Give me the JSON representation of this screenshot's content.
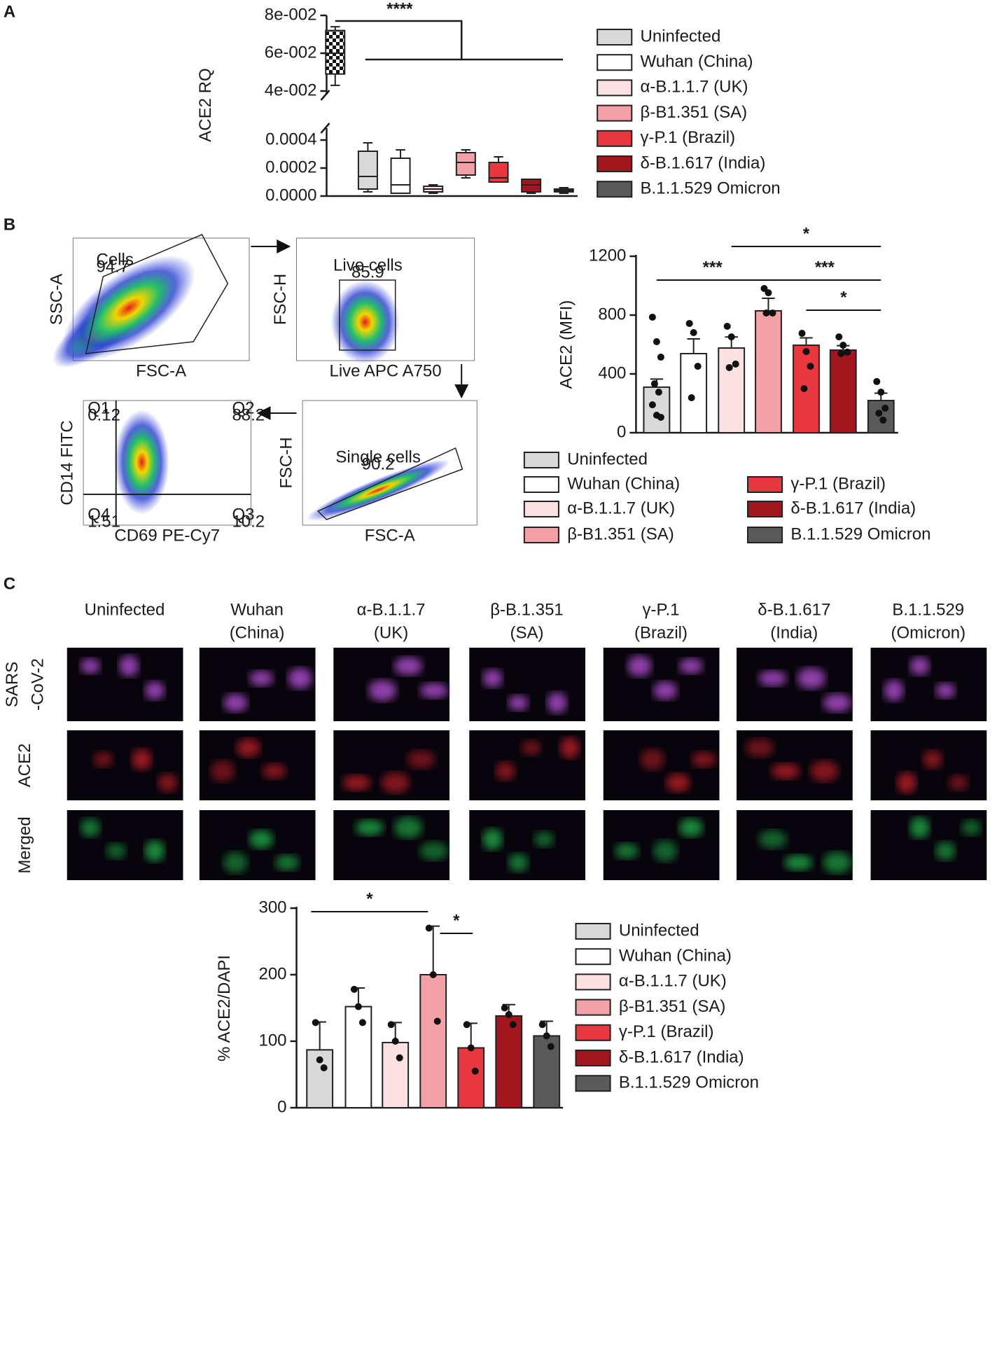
{
  "panel_labels": [
    "A",
    "B",
    "C"
  ],
  "chart_data": [
    {
      "type": "box",
      "ylabel": "ACE2 RQ",
      "upper_ylim": [
        0.04,
        0.08
      ],
      "upper_yticks": [
        {
          "value": 0.04,
          "label": "4e-002"
        },
        {
          "value": 0.06,
          "label": "6e-002"
        },
        {
          "value": 0.08,
          "label": "8e-002"
        }
      ],
      "ylim": [
        0,
        0.00045
      ],
      "yticks": [
        {
          "value": 0,
          "label": "0.0000"
        },
        {
          "value": 0.0002,
          "label": "0.0002"
        },
        {
          "value": 0.0004,
          "label": "0.0004"
        }
      ],
      "reference_box": {
        "pattern": "checker",
        "values": [
          0.043,
          0.049,
          0.06,
          0.072,
          0.074
        ]
      },
      "series": [
        {
          "name": "Uninfected",
          "color": "#d9d9d9",
          "values": [
            3e-05,
            5e-05,
            0.00014,
            0.00032,
            0.00038
          ]
        },
        {
          "name": "Wuhan (China)",
          "color": "#ffffff",
          "values": [
            2e-05,
            2e-05,
            8e-05,
            0.00027,
            0.00033
          ]
        },
        {
          "name": "α-B.1.1.7 (UK)",
          "color": "#fbe1e3",
          "values": [
            2e-05,
            3e-05,
            5e-05,
            7e-05,
            8e-05
          ]
        },
        {
          "name": "β-B1.351 (SA)",
          "color": "#f3a0a6",
          "values": [
            0.00013,
            0.00015,
            0.00024,
            0.00031,
            0.00033
          ]
        },
        {
          "name": "γ-P.1 (Brazil)",
          "color": "#e8373f",
          "values": [
            0.0001,
            0.0001,
            0.00013,
            0.00024,
            0.00028
          ]
        },
        {
          "name": "δ-B.1.617 (India)",
          "color": "#a3161e",
          "values": [
            2e-05,
            3e-05,
            8e-05,
            0.00012,
            0.00012
          ]
        },
        {
          "name": "B.1.1.529 Omicron",
          "color": "#5a5a5a",
          "values": [
            2e-05,
            3e-05,
            4e-05,
            5e-05,
            6e-05
          ]
        }
      ],
      "significance": [
        {
          "label": "****"
        }
      ]
    },
    {
      "type": "bar",
      "ylabel": "ACE2 (MFI)",
      "ylim": [
        0,
        1200
      ],
      "yticks": [
        0,
        400,
        800,
        1200
      ],
      "series": [
        {
          "name": "Uninfected",
          "color": "#d9d9d9",
          "value": 310,
          "error": 55,
          "points": [
            786,
            619,
            514,
            333,
            276,
            190,
            119,
            105
          ]
        },
        {
          "name": "Wuhan (China)",
          "color": "#ffffff",
          "value": 538,
          "error": 100,
          "points": [
            743,
            681,
            452,
            238
          ]
        },
        {
          "name": "α-B.1.1.7 (UK)",
          "color": "#fbe1e3",
          "value": 576,
          "error": 75,
          "points": [
            724,
            652,
            467,
            443
          ]
        },
        {
          "name": "β-B1.351 (SA)",
          "color": "#f3a0a6",
          "value": 829,
          "error": 85,
          "points": [
            981,
            952,
            814,
            814
          ]
        },
        {
          "name": "γ-P.1 (Brazil)",
          "color": "#e8373f",
          "value": 595,
          "error": 50,
          "points": [
            676,
            552,
            452,
            300
          ]
        },
        {
          "name": "δ-B.1.617 (India)",
          "color": "#a3161e",
          "value": 562,
          "error": 30,
          "points": [
            652,
            595,
            548,
            538
          ]
        },
        {
          "name": "B.1.1.529 Omicron",
          "color": "#5a5a5a",
          "value": 219,
          "error": 50,
          "points": [
            348,
            276,
            167,
            133,
            86
          ]
        }
      ],
      "significance": [
        {
          "label": "*"
        },
        {
          "label": "***"
        },
        {
          "label": "***"
        },
        {
          "label": "*"
        }
      ]
    },
    {
      "type": "bar",
      "ylabel": "% ACE2/DAPI",
      "ylim": [
        0,
        300
      ],
      "yticks": [
        0,
        100,
        200,
        300
      ],
      "series": [
        {
          "name": "Uninfected",
          "color": "#d9d9d9",
          "value": 87,
          "error": 42,
          "points": [
            128,
            72,
            60
          ]
        },
        {
          "name": "Wuhan (China)",
          "color": "#ffffff",
          "value": 152,
          "error": 28,
          "points": [
            178,
            152,
            128
          ]
        },
        {
          "name": "α-B.1.1.7 (UK)",
          "color": "#fbe1e3",
          "value": 98,
          "error": 30,
          "points": [
            125,
            100,
            75
          ]
        },
        {
          "name": "β-B1.351 (SA)",
          "color": "#f3a0a6",
          "value": 200,
          "error": 73,
          "points": [
            270,
            200,
            130
          ]
        },
        {
          "name": "γ-P.1 (Brazil)",
          "color": "#e8373f",
          "value": 90,
          "error": 37,
          "points": [
            125,
            90,
            55
          ]
        },
        {
          "name": "δ-B.1.617 (India)",
          "color": "#a3161e",
          "value": 138,
          "error": 17,
          "points": [
            150,
            140,
            125
          ]
        },
        {
          "name": "B.1.1.529 Omicron",
          "color": "#5a5a5a",
          "value": 108,
          "error": 22,
          "points": [
            125,
            108,
            92
          ]
        }
      ],
      "significance": [
        {
          "label": "*"
        },
        {
          "label": "*"
        }
      ]
    }
  ],
  "flow_cytometry": {
    "plots": [
      {
        "gate_label": "Cells",
        "gate_value": 94.7,
        "xlabel": "FSC-A",
        "ylabel": "SSC-A"
      },
      {
        "gate_label": "Live cells",
        "gate_value": 85.9,
        "xlabel": "Live APC A750",
        "ylabel": "FSC-H"
      },
      {
        "gate_label": "Single cells",
        "gate_value": 90.2,
        "xlabel": "FSC-A",
        "ylabel": "FSC-H"
      },
      {
        "xlabel": "CD69 PE-Cy7",
        "ylabel": "CD14 FITC",
        "quadrants": [
          {
            "name": "Q1",
            "value": 0.12
          },
          {
            "name": "Q2",
            "value": 88.2
          },
          {
            "name": "Q3",
            "value": 10.2
          },
          {
            "name": "Q4",
            "value": 1.51
          }
        ]
      }
    ]
  },
  "microscopy": {
    "columns": [
      [
        "Uninfected"
      ],
      [
        "Wuhan",
        "(China)"
      ],
      [
        "α-B.1.1.7",
        "(UK)"
      ],
      [
        "β-B.1.351",
        "(SA)"
      ],
      [
        "γ-P.1",
        "(Brazil)"
      ],
      [
        "δ-B.1.617",
        "(India)"
      ],
      [
        "B.1.1.529",
        "(Omicron)"
      ]
    ],
    "rows": [
      [
        "SARS",
        "-CoV-2"
      ],
      [
        "ACE2"
      ],
      [
        "Merged"
      ]
    ]
  }
}
